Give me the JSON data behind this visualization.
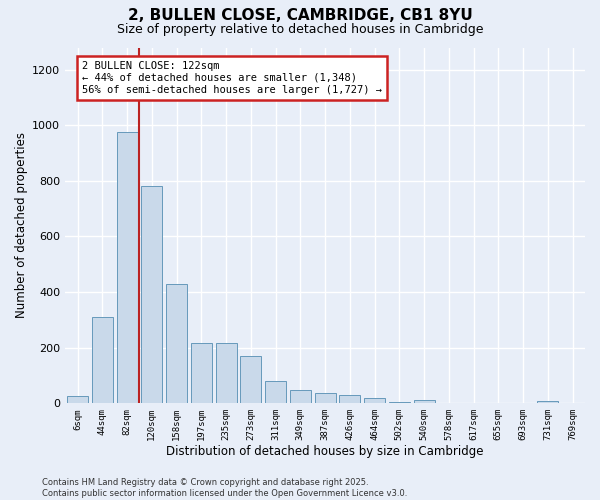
{
  "title": "2, BULLEN CLOSE, CAMBRIDGE, CB1 8YU",
  "subtitle": "Size of property relative to detached houses in Cambridge",
  "xlabel": "Distribution of detached houses by size in Cambridge",
  "ylabel": "Number of detached properties",
  "categories": [
    "6sqm",
    "44sqm",
    "82sqm",
    "120sqm",
    "158sqm",
    "197sqm",
    "235sqm",
    "273sqm",
    "311sqm",
    "349sqm",
    "387sqm",
    "426sqm",
    "464sqm",
    "502sqm",
    "540sqm",
    "578sqm",
    "617sqm",
    "655sqm",
    "693sqm",
    "731sqm",
    "769sqm"
  ],
  "values": [
    25,
    310,
    975,
    780,
    430,
    215,
    215,
    170,
    80,
    48,
    35,
    30,
    18,
    5,
    10,
    0,
    0,
    0,
    0,
    8,
    0
  ],
  "bar_color": "#c9d9ea",
  "bar_edge_color": "#6699bb",
  "vline_color": "#bb2222",
  "annotation_text": "2 BULLEN CLOSE: 122sqm\n← 44% of detached houses are smaller (1,348)\n56% of semi-detached houses are larger (1,727) →",
  "annotation_box_color": "#cc2222",
  "annotation_bg": "#ffffff",
  "ylim": [
    0,
    1280
  ],
  "yticks": [
    0,
    200,
    400,
    600,
    800,
    1000,
    1200
  ],
  "background_color": "#e8eef8",
  "grid_color": "#ffffff",
  "title_fontsize": 11,
  "subtitle_fontsize": 9,
  "footnote": "Contains HM Land Registry data © Crown copyright and database right 2025.\nContains public sector information licensed under the Open Government Licence v3.0."
}
